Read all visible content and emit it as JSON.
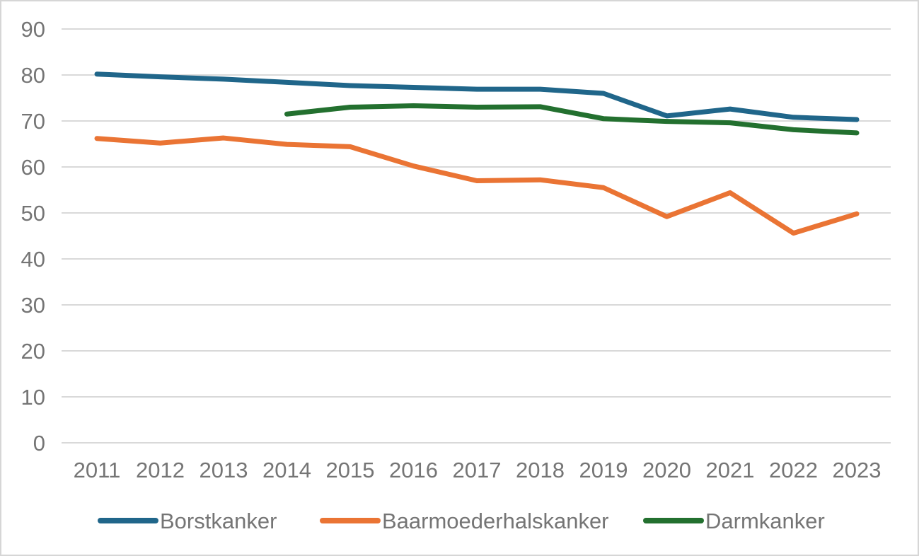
{
  "chart": {
    "background": "#ffffff",
    "border_color": "#d6d6d6",
    "gridline_color": "#d9d9d9",
    "tick_label_color": "#757575",
    "legend_label_color": "#757575"
  },
  "chart_data": {
    "type": "line",
    "title": "",
    "x": [
      2011,
      2012,
      2013,
      2014,
      2015,
      2016,
      2017,
      2018,
      2019,
      2020,
      2021,
      2022,
      2023
    ],
    "x_tick_labels": [
      "2011",
      "2012",
      "2013",
      "2014",
      "2015",
      "2016",
      "2017",
      "2018",
      "2019",
      "2020",
      "2021",
      "2022",
      "2023"
    ],
    "y_ticks": [
      0,
      10,
      20,
      30,
      40,
      50,
      60,
      70,
      80,
      90
    ],
    "y_tick_labels": [
      "0",
      "10",
      "20",
      "30",
      "40",
      "50",
      "60",
      "70",
      "80",
      "90"
    ],
    "ylim": [
      0,
      90
    ],
    "grid": "horizontal",
    "legend_position": "bottom",
    "series": [
      {
        "name": "Borstkanker",
        "color": "#20668A",
        "values": [
          80.2,
          79.6,
          79.1,
          78.4,
          77.7,
          77.3,
          76.9,
          76.9,
          76.0,
          71.1,
          72.6,
          70.8,
          70.3
        ]
      },
      {
        "name": "Baarmoederhalskanker",
        "color": "#EA7434",
        "values": [
          66.2,
          65.2,
          66.3,
          64.9,
          64.4,
          60.2,
          57.0,
          57.2,
          55.5,
          49.2,
          54.4,
          45.6,
          49.8
        ]
      },
      {
        "name": "Darmkanker",
        "color": "#23702F",
        "values": [
          null,
          null,
          null,
          71.5,
          73.0,
          73.3,
          73.0,
          73.1,
          70.5,
          69.9,
          69.6,
          68.1,
          67.4
        ]
      }
    ]
  }
}
